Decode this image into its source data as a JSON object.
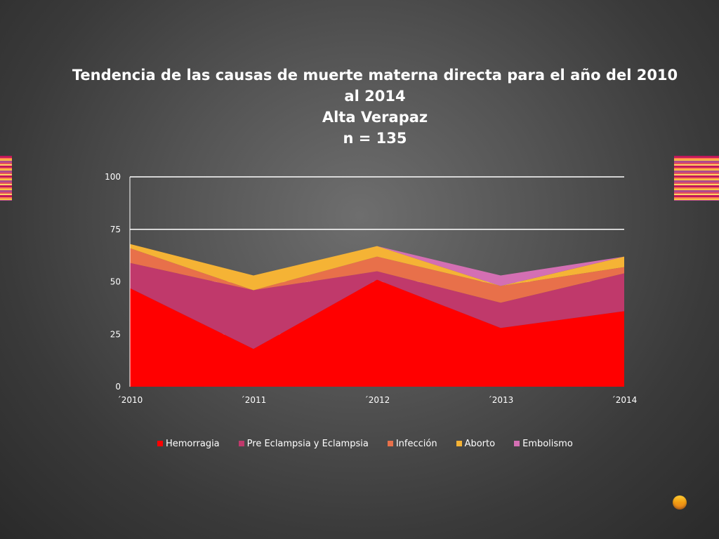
{
  "title_lines": [
    "Tendencia de las causas de muerte materna directa para el año del 2010",
    "al 2014",
    "Alta Verapaz",
    "n = 135"
  ],
  "chart_data": {
    "type": "area",
    "stacked": true,
    "title": "Tendencia de las causas de muerte materna directa para el año del 2010 al 2014 Alta Verapaz n = 135",
    "categories": [
      "´2010",
      "´2011",
      "´2012",
      "´2013",
      "´2014"
    ],
    "series": [
      {
        "name": "Hemorragia",
        "color": "#ff0000",
        "values": [
          47,
          18,
          51,
          28,
          36
        ]
      },
      {
        "name": "Pre Eclampsia y Eclampsia",
        "color": "#c0396b",
        "values": [
          12,
          28,
          4,
          12,
          18
        ]
      },
      {
        "name": "Infección",
        "color": "#e8704a",
        "values": [
          7,
          0,
          7,
          8,
          3
        ]
      },
      {
        "name": "Aborto",
        "color": "#f5b335",
        "values": [
          2,
          7,
          5,
          0,
          5
        ]
      },
      {
        "name": "Embolismo",
        "color": "#d46fb3",
        "values": [
          0,
          0,
          0,
          5,
          0
        ]
      }
    ],
    "yticks": [
      0,
      25,
      50,
      75,
      100
    ],
    "ylim": [
      0,
      100
    ],
    "grid": true,
    "legend_position": "bottom"
  }
}
